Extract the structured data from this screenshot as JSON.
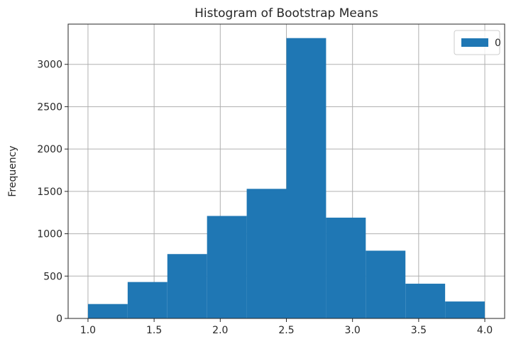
{
  "chart_data": {
    "type": "bar",
    "title": "Histogram of Bootstrap Means",
    "xlabel": "",
    "ylabel": "Frequency",
    "bins": [
      {
        "x0": 1.0,
        "x1": 1.3,
        "count": 170
      },
      {
        "x0": 1.3,
        "x1": 1.6,
        "count": 430
      },
      {
        "x0": 1.6,
        "x1": 1.9,
        "count": 760
      },
      {
        "x0": 1.9,
        "x1": 2.2,
        "count": 1210
      },
      {
        "x0": 2.2,
        "x1": 2.5,
        "count": 1530
      },
      {
        "x0": 2.5,
        "x1": 2.8,
        "count": 3310
      },
      {
        "x0": 2.8,
        "x1": 3.1,
        "count": 1190
      },
      {
        "x0": 3.1,
        "x1": 3.4,
        "count": 800
      },
      {
        "x0": 3.4,
        "x1": 3.7,
        "count": 410
      },
      {
        "x0": 3.7,
        "x1": 4.0,
        "count": 200
      }
    ],
    "xlim": [
      0.85,
      4.15
    ],
    "ylim": [
      0,
      3475
    ],
    "xticks": [
      "1.0",
      "1.5",
      "2.0",
      "2.5",
      "3.0",
      "3.5",
      "4.0"
    ],
    "yticks": [
      "0",
      "500",
      "1000",
      "1500",
      "2000",
      "2500",
      "3000"
    ],
    "grid": true,
    "legend": {
      "placement": "top-right",
      "entries": [
        "0"
      ]
    },
    "bar_color": "#1f77b4"
  }
}
